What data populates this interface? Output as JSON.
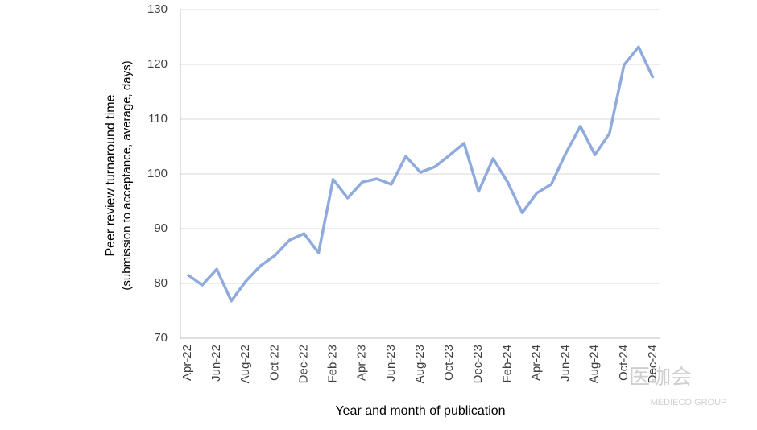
{
  "chart_data": {
    "type": "line",
    "y_label": [
      "Peer review turnaround time",
      "(submission to acceptance, average, days)"
    ],
    "x_label": "Year and month of publication",
    "categories": [
      "Apr-22",
      null,
      "Jun-22",
      null,
      "Aug-22",
      null,
      "Oct-22",
      null,
      "Dec-22",
      null,
      "Feb-23",
      null,
      "Apr-23",
      null,
      "Jun-23",
      null,
      "Aug-23",
      null,
      "Oct-23",
      null,
      "Dec-23",
      null,
      "Feb-24",
      null,
      "Apr-24",
      null,
      "Jun-24",
      null,
      "Aug-24",
      null,
      "Oct-24",
      null,
      "Dec-24"
    ],
    "series": [
      {
        "name": "Turnaround time",
        "color": "#8faadc",
        "values": [
          81.6,
          79.7,
          82.6,
          76.8,
          80.4,
          83.2,
          85.1,
          87.9,
          89.1,
          85.6,
          99.0,
          95.6,
          98.5,
          99.1,
          98.1,
          103.2,
          100.3,
          101.3,
          103.4,
          105.6,
          96.8,
          102.8,
          98.5,
          92.9,
          96.5,
          98.1,
          103.8,
          108.7,
          103.5,
          107.4,
          119.9,
          123.2,
          117.5
        ]
      }
    ],
    "ylim": [
      70,
      130
    ],
    "yticks": [
      70,
      80,
      90,
      100,
      110,
      120,
      130
    ],
    "grid": true,
    "watermark": [
      "医咖会",
      "MEDIECO GROUP"
    ]
  }
}
